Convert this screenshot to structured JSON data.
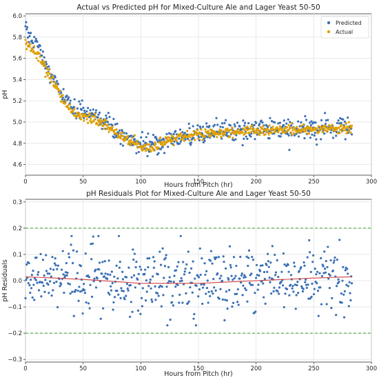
{
  "chart_data": [
    {
      "type": "scatter",
      "title": "Actual vs Predicted pH for Mixed-Culture Ale and Lager Yeast 50-50",
      "xlabel": "Hours from Pitch (hr)",
      "ylabel": "pH",
      "xlim": [
        0,
        300
      ],
      "ylim": [
        4.5,
        6.02
      ],
      "xticks": [
        0,
        50,
        100,
        150,
        200,
        250,
        300
      ],
      "yticks": [
        4.6,
        4.8,
        5.0,
        5.2,
        5.4,
        5.6,
        5.8,
        6.0
      ],
      "ytick_labels": [
        "4.6",
        "4.8",
        "5.0",
        "5.2",
        "5.4",
        "5.6",
        "5.8",
        "6.0"
      ],
      "grid": true,
      "legend_position": "top-right",
      "x_range_data": [
        0,
        283
      ],
      "series": [
        {
          "name": "Predicted",
          "color": "#3a6fb5",
          "trend_x": [
            0,
            10,
            20,
            30,
            40,
            50,
            60,
            70,
            80,
            90,
            100,
            110,
            120,
            130,
            150,
            200,
            250,
            283
          ],
          "trend_y": [
            5.88,
            5.72,
            5.5,
            5.27,
            5.13,
            5.08,
            5.05,
            5.0,
            4.9,
            4.83,
            4.78,
            4.78,
            4.82,
            4.86,
            4.9,
            4.93,
            4.93,
            4.95
          ],
          "spread": 0.08
        },
        {
          "name": "Actual",
          "color": "#e0a000",
          "trend_x": [
            0,
            10,
            20,
            30,
            40,
            50,
            60,
            70,
            80,
            90,
            100,
            110,
            120,
            130,
            150,
            200,
            250,
            283
          ],
          "trend_y": [
            5.75,
            5.64,
            5.45,
            5.24,
            5.1,
            5.05,
            5.03,
            4.98,
            4.88,
            4.82,
            4.77,
            4.76,
            4.8,
            4.85,
            4.89,
            4.92,
            4.93,
            4.95
          ],
          "spread": 0.04
        }
      ]
    },
    {
      "type": "scatter",
      "title": "pH Residuals Plot for Mixed-Culture Ale and Lager Yeast 50-50",
      "xlabel": "Hours from Pitch (hr)",
      "ylabel": "pH Residuals",
      "xlim": [
        0,
        300
      ],
      "ylim": [
        -0.31,
        0.31
      ],
      "xticks": [
        0,
        50,
        100,
        150,
        200,
        250,
        300
      ],
      "yticks": [
        -0.3,
        -0.2,
        -0.1,
        0.0,
        0.1,
        0.2,
        0.3
      ],
      "ytick_labels": [
        "−0.3",
        "−0.2",
        "−0.1",
        "0.0",
        "0.1",
        "0.2",
        "0.3"
      ],
      "grid": true,
      "x_range_data": [
        0,
        283
      ],
      "threshold_lines": [
        0.2,
        -0.2
      ],
      "threshold_color": "#2a9a2a",
      "point_color": "#3a6fb5",
      "trend_color": "#d04040",
      "trend_x": [
        0,
        50,
        100,
        150,
        200,
        250,
        283
      ],
      "trend_y": [
        0.015,
        0.005,
        -0.01,
        -0.01,
        0.0,
        0.01,
        0.015
      ],
      "spread": 0.09
    }
  ]
}
